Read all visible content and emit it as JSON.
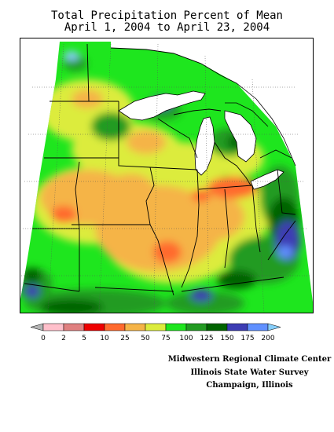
{
  "title": {
    "line1": "Total Precipitation Percent of Mean",
    "line2": "April 1, 2004 to April 23, 2004"
  },
  "legend": {
    "bins": [
      {
        "color": "#b4b4b4"
      },
      {
        "color": "#ffc0cb"
      },
      {
        "color": "#e08080"
      },
      {
        "color": "#ee0000"
      },
      {
        "color": "#ff6a2e"
      },
      {
        "color": "#f5b447"
      },
      {
        "color": "#dcec3c"
      },
      {
        "color": "#1ee61e"
      },
      {
        "color": "#229b22"
      },
      {
        "color": "#006400"
      },
      {
        "color": "#3c3cb4"
      },
      {
        "color": "#6090ff"
      },
      {
        "color": "#87cefa"
      }
    ],
    "ticks": [
      "0",
      "2",
      "5",
      "10",
      "25",
      "50",
      "75",
      "100",
      "125",
      "150",
      "175",
      "200"
    ]
  },
  "credits": {
    "line1": "Midwestern Regional Climate Center",
    "line2": "Illinois State Water Survey",
    "line3": "Champaign, Illinois"
  }
}
